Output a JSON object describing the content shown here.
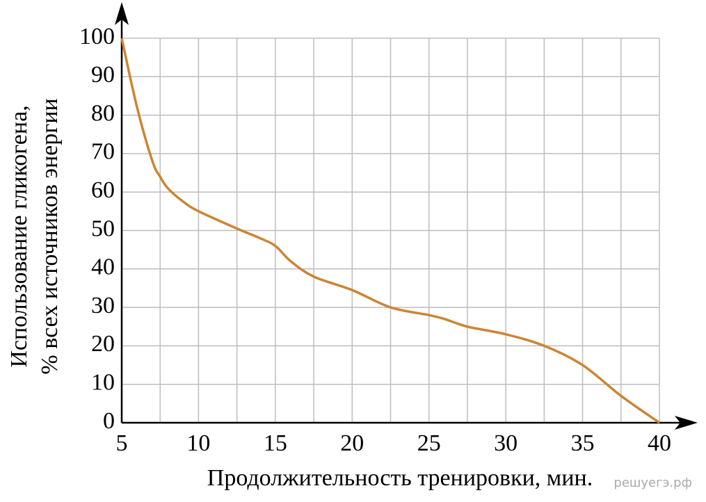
{
  "chart_data": {
    "type": "line",
    "y_label": [
      "Использование гликогена,",
      "% всех источников энергии"
    ],
    "x_label": "Продолжительность тренировки, мин.",
    "watermark": "решуегэ.рф",
    "x": [
      5,
      6,
      7,
      7.5,
      8,
      9,
      10,
      12.5,
      14,
      15,
      16,
      17.5,
      20,
      22.5,
      25,
      26,
      27.5,
      30,
      32.5,
      35,
      37.5,
      40
    ],
    "series": [
      {
        "color": "#cc8433",
        "values": [
          100,
          82,
          68,
          64,
          61,
          57.5,
          55,
          50.5,
          48,
          46,
          42,
          38,
          34.5,
          30,
          28,
          27,
          25,
          23,
          20,
          15,
          7,
          0
        ]
      }
    ],
    "xlim": [
      5,
      40
    ],
    "ylim": [
      0,
      100
    ],
    "xticks": [
      5,
      10,
      15,
      20,
      25,
      30,
      35,
      40
    ],
    "xgrid": [
      5,
      7.5,
      10,
      12.5,
      15,
      17.5,
      20,
      22.5,
      25,
      27.5,
      30,
      32.5,
      35,
      37.5,
      40
    ],
    "yticks": [
      0,
      10,
      20,
      30,
      40,
      50,
      60,
      70,
      80,
      90,
      100
    ],
    "grid": true
  }
}
